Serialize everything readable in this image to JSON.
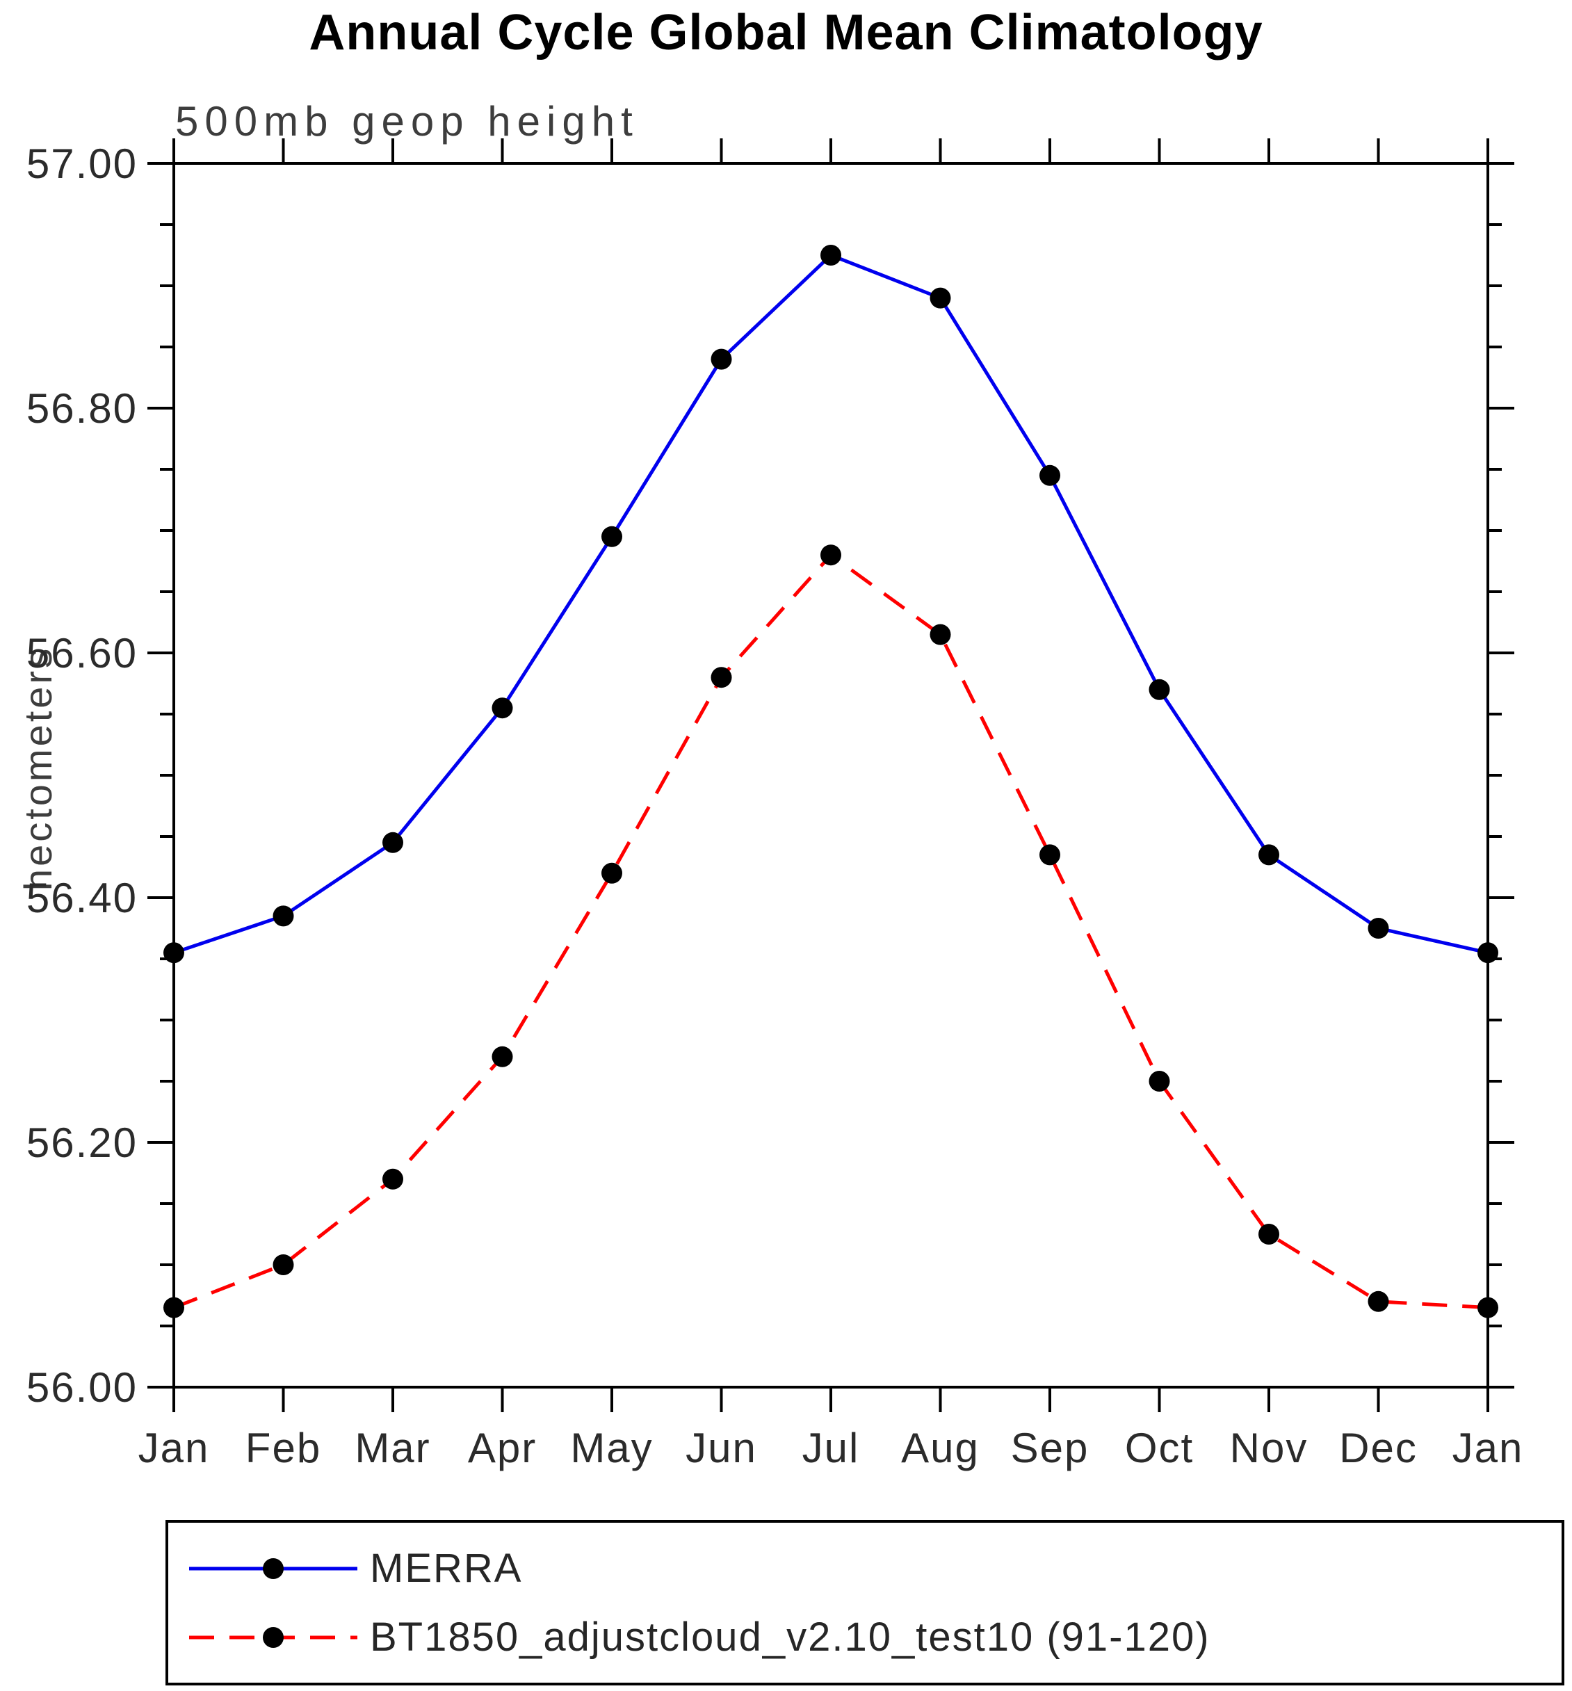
{
  "chart_data": {
    "type": "line",
    "title": "Annual Cycle Global Mean Climatology",
    "subtitle": "500mb geop height",
    "xlabel": "",
    "ylabel": "hectometers",
    "categories": [
      "Jan",
      "Feb",
      "Mar",
      "Apr",
      "May",
      "Jun",
      "Jul",
      "Aug",
      "Sep",
      "Oct",
      "Nov",
      "Dec",
      "Jan"
    ],
    "ylim": [
      56.0,
      57.0
    ],
    "ytick_major_step": 0.2,
    "ytick_minor_step": 0.05,
    "ytick_labels": [
      "56.00",
      "56.20",
      "56.40",
      "56.60",
      "56.80",
      "57.00"
    ],
    "grid": false,
    "legend_position": "bottom",
    "axis_color": "#000000",
    "label_color": "#2b2b2b",
    "series": [
      {
        "name": "MERRA",
        "color": "#0000ee",
        "style": "solid",
        "marker": "circle",
        "marker_color": "#000000",
        "values": [
          56.355,
          56.385,
          56.445,
          56.555,
          56.695,
          56.84,
          56.925,
          56.89,
          56.745,
          56.57,
          56.435,
          56.375,
          56.355
        ]
      },
      {
        "name": "BT1850_adjustcloud_v2.10_test10 (91-120)",
        "color": "#ff0000",
        "style": "dashed",
        "marker": "circle",
        "marker_color": "#000000",
        "values": [
          56.065,
          56.1,
          56.17,
          56.27,
          56.42,
          56.58,
          56.68,
          56.615,
          56.435,
          56.25,
          56.125,
          56.07,
          56.065
        ]
      }
    ]
  }
}
